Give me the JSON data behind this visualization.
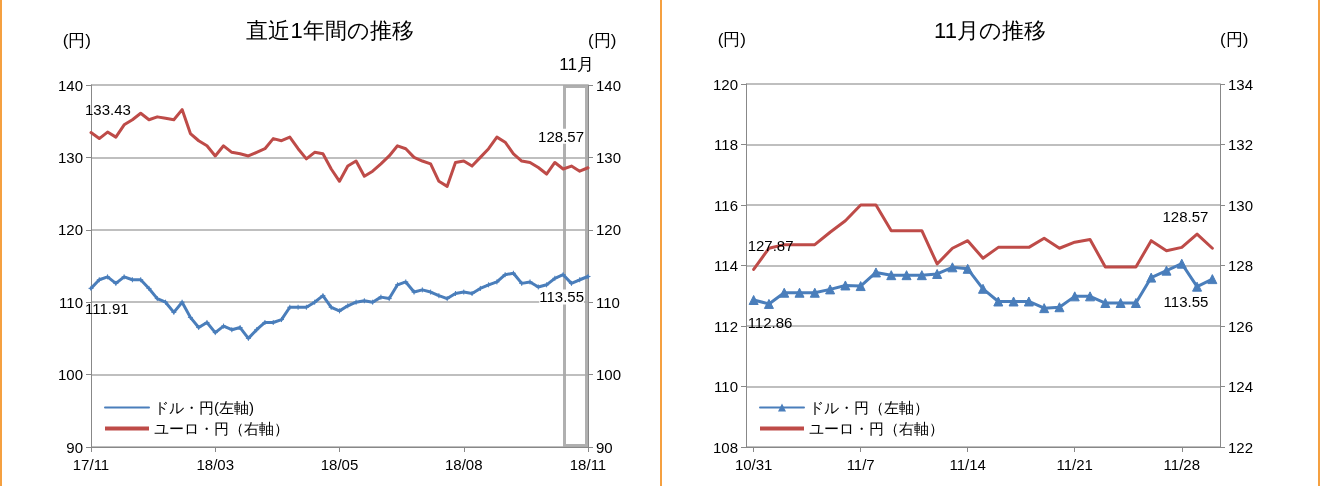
{
  "chart_data": [
    {
      "type": "line",
      "title": "直近1年間の推移",
      "ylabel": "(円)",
      "y2label": "(円)",
      "annotations": [
        "11月"
      ],
      "categories": [
        "17/11",
        null,
        null,
        null,
        null,
        null,
        null,
        null,
        null,
        null,
        null,
        null,
        null,
        null,
        null,
        "18/03",
        null,
        null,
        null,
        null,
        null,
        null,
        null,
        null,
        null,
        null,
        null,
        null,
        null,
        null,
        "18/05",
        null,
        null,
        null,
        null,
        null,
        null,
        null,
        null,
        null,
        null,
        null,
        null,
        null,
        null,
        "18/08",
        null,
        null,
        null,
        null,
        null,
        null,
        null,
        null,
        null,
        null,
        null,
        null,
        null,
        null,
        "18/11"
      ],
      "series": [
        {
          "name": "ドル・円(左軸)",
          "color": "#4a7ebb",
          "marker": "cross",
          "values": [
            111.91,
            113.1,
            113.5,
            112.6,
            113.5,
            113.1,
            113.1,
            111.9,
            110.5,
            110.0,
            108.6,
            110.0,
            107.9,
            106.5,
            107.2,
            105.8,
            106.7,
            106.2,
            106.5,
            105.0,
            106.2,
            107.2,
            107.2,
            107.6,
            109.3,
            109.3,
            109.3,
            110.0,
            110.9,
            109.3,
            108.8,
            109.5,
            110.0,
            110.2,
            110.0,
            110.7,
            110.5,
            112.4,
            112.8,
            111.4,
            111.7,
            111.4,
            110.9,
            110.5,
            111.2,
            111.4,
            111.2,
            111.9,
            112.4,
            112.8,
            113.8,
            114.0,
            112.6,
            112.8,
            112.1,
            112.4,
            113.3,
            113.8,
            112.6,
            113.1,
            113.55
          ],
          "value_labels": [
            "111.91",
            null,
            null,
            null,
            null,
            null,
            null,
            null,
            null,
            null,
            null,
            null,
            null,
            null,
            null,
            null,
            null,
            null,
            null,
            null,
            null,
            null,
            null,
            null,
            null,
            null,
            null,
            null,
            null,
            null,
            null,
            null,
            null,
            null,
            null,
            null,
            null,
            null,
            null,
            null,
            null,
            null,
            null,
            null,
            null,
            null,
            null,
            null,
            null,
            null,
            null,
            null,
            null,
            null,
            null,
            null,
            null,
            null,
            null,
            null,
            "113.55"
          ]
        },
        {
          "name": "ユーロ・円（右軸）",
          "color": "#be4b48",
          "axis": "y2",
          "marker": "none",
          "values": [
            133.43,
            132.6,
            133.5,
            132.8,
            134.5,
            135.2,
            136.1,
            135.2,
            135.6,
            135.4,
            135.2,
            136.6,
            133.3,
            132.3,
            131.6,
            130.2,
            131.6,
            130.7,
            130.5,
            130.2,
            130.7,
            131.2,
            132.6,
            132.3,
            132.8,
            131.2,
            129.8,
            130.7,
            130.5,
            128.4,
            126.7,
            128.8,
            129.5,
            127.4,
            128.1,
            129.1,
            130.2,
            131.6,
            131.2,
            130.0,
            129.5,
            129.1,
            126.7,
            126.0,
            129.3,
            129.5,
            128.8,
            130.0,
            131.2,
            132.8,
            132.1,
            130.5,
            129.5,
            129.3,
            128.6,
            127.7,
            129.3,
            128.4,
            128.8,
            128.1,
            128.57
          ],
          "value_labels": [
            "133.43",
            null,
            null,
            null,
            null,
            null,
            null,
            null,
            null,
            null,
            null,
            null,
            null,
            null,
            null,
            null,
            null,
            null,
            null,
            null,
            null,
            null,
            null,
            null,
            null,
            null,
            null,
            null,
            null,
            null,
            null,
            null,
            null,
            null,
            null,
            null,
            null,
            null,
            null,
            null,
            null,
            null,
            null,
            null,
            null,
            null,
            null,
            null,
            null,
            null,
            null,
            null,
            null,
            null,
            null,
            null,
            null,
            null,
            null,
            null,
            "128.57"
          ]
        }
      ],
      "ylim": [
        90,
        140
      ],
      "yticks": [
        90,
        100,
        110,
        120,
        130,
        140
      ],
      "y2lim": [
        90,
        140
      ],
      "y2ticks": [
        90,
        100,
        110,
        120,
        130,
        140
      ],
      "grid": "y",
      "legend": "bottom left",
      "line_style": "solid"
    },
    {
      "type": "line",
      "title": "11月の推移",
      "ylabel": "(円)",
      "y2label": "(円)",
      "categories": [
        "10/31",
        null,
        null,
        null,
        null,
        null,
        null,
        "11/7",
        null,
        null,
        null,
        null,
        null,
        null,
        "11/14",
        null,
        null,
        null,
        null,
        null,
        null,
        "11/21",
        null,
        null,
        null,
        null,
        null,
        null,
        "11/28",
        null,
        null
      ],
      "series": [
        {
          "name": "ドル・円（左軸）",
          "color": "#4a7ebb",
          "marker": "triangle",
          "values": [
            112.86,
            112.73,
            113.1,
            113.1,
            113.1,
            113.21,
            113.34,
            113.32,
            113.77,
            113.68,
            113.68,
            113.68,
            113.72,
            113.94,
            113.89,
            113.23,
            112.81,
            112.81,
            112.81,
            112.59,
            112.62,
            112.98,
            112.98,
            112.76,
            112.76,
            112.76,
            113.6,
            113.83,
            114.06,
            113.3,
            113.55
          ],
          "value_labels": [
            "112.86",
            null,
            null,
            null,
            null,
            null,
            null,
            null,
            null,
            null,
            null,
            null,
            null,
            null,
            null,
            null,
            null,
            null,
            null,
            null,
            null,
            null,
            null,
            null,
            null,
            null,
            null,
            null,
            null,
            null,
            "113.55"
          ]
        },
        {
          "name": "ユーロ・円（右軸）",
          "color": "#be4b48",
          "axis": "y2",
          "marker": "none",
          "values": [
            127.87,
            128.57,
            128.69,
            128.69,
            128.69,
            129.1,
            129.48,
            130.0,
            130.0,
            129.15,
            129.15,
            129.15,
            128.05,
            128.57,
            128.82,
            128.24,
            128.6,
            128.6,
            128.6,
            128.9,
            128.57,
            128.77,
            128.86,
            127.95,
            127.95,
            127.95,
            128.82,
            128.49,
            128.6,
            129.04,
            128.57
          ],
          "value_labels": [
            "127.87",
            null,
            null,
            null,
            null,
            null,
            null,
            null,
            null,
            null,
            null,
            null,
            null,
            null,
            null,
            null,
            null,
            null,
            null,
            null,
            null,
            null,
            null,
            null,
            null,
            null,
            null,
            null,
            null,
            null,
            "128.57"
          ]
        }
      ],
      "ylim": [
        108,
        120
      ],
      "yticks": [
        108,
        110,
        112,
        114,
        116,
        118,
        120
      ],
      "y2lim": [
        122,
        134
      ],
      "y2ticks": [
        122,
        124,
        126,
        128,
        130,
        132,
        134
      ],
      "grid": "y",
      "legend": "bottom left",
      "line_style": "solid"
    }
  ]
}
